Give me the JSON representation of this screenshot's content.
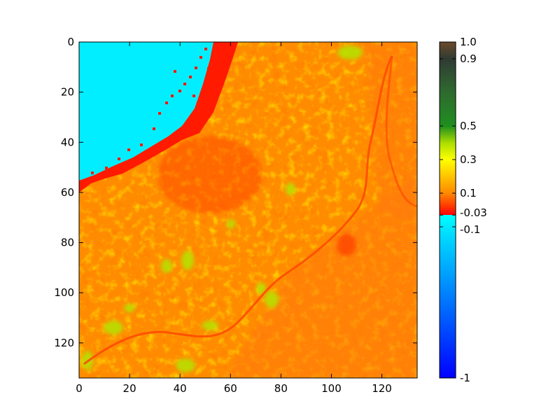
{
  "chart_data": {
    "type": "heatmap",
    "title": "",
    "xlabel": "",
    "ylabel": "",
    "xlim": [
      0,
      134
    ],
    "ylim": [
      134,
      0
    ],
    "x_ticks": [
      "0",
      "20",
      "40",
      "60",
      "80",
      "100",
      "120"
    ],
    "y_ticks": [
      "0",
      "20",
      "40",
      "60",
      "80",
      "100",
      "120"
    ],
    "image_size": [
      134,
      134
    ],
    "regions": [
      {
        "label": "water (cyan, value < -0.1)",
        "color": "#00eeff"
      },
      {
        "label": "shoreline (red, ~ -0.03)",
        "color": "#ff1a00"
      },
      {
        "label": "urban / land (orange-yellow, 0.1–0.3)",
        "color": "#ff8a00"
      },
      {
        "label": "vegetation (yellow-green, 0.3–0.5)",
        "color": "#c8e000"
      },
      {
        "label": "river channel",
        "color": "#ff5a00"
      }
    ],
    "colorbar": {
      "range": [
        -1,
        1
      ],
      "ticks": [
        {
          "value": 1.0,
          "label": "1.0"
        },
        {
          "value": 0.9,
          "label": "0.9"
        },
        {
          "value": 0.5,
          "label": "0.5"
        },
        {
          "value": 0.3,
          "label": "0.3"
        },
        {
          "value": 0.1,
          "label": "0.1"
        },
        {
          "value": -0.03,
          "label": "-0.03"
        },
        {
          "value": -0.1,
          "label": "-0.1"
        },
        {
          "value": -1,
          "label": "-1"
        }
      ],
      "stops": [
        {
          "value": 1.0,
          "color": "#6b4a2a"
        },
        {
          "value": 0.9,
          "color": "#2f3a33"
        },
        {
          "value": 0.7,
          "color": "#2f6a2f"
        },
        {
          "value": 0.5,
          "color": "#1f8f1f"
        },
        {
          "value": 0.4,
          "color": "#aadd00"
        },
        {
          "value": 0.3,
          "color": "#ffff00"
        },
        {
          "value": 0.1,
          "color": "#ff8800"
        },
        {
          "value": -0.03,
          "color": "#ff0000"
        },
        {
          "value": -0.0301,
          "color": "#00ffff"
        },
        {
          "value": -0.1,
          "color": "#00e8ff"
        },
        {
          "value": -1,
          "color": "#0000ff"
        }
      ]
    }
  }
}
